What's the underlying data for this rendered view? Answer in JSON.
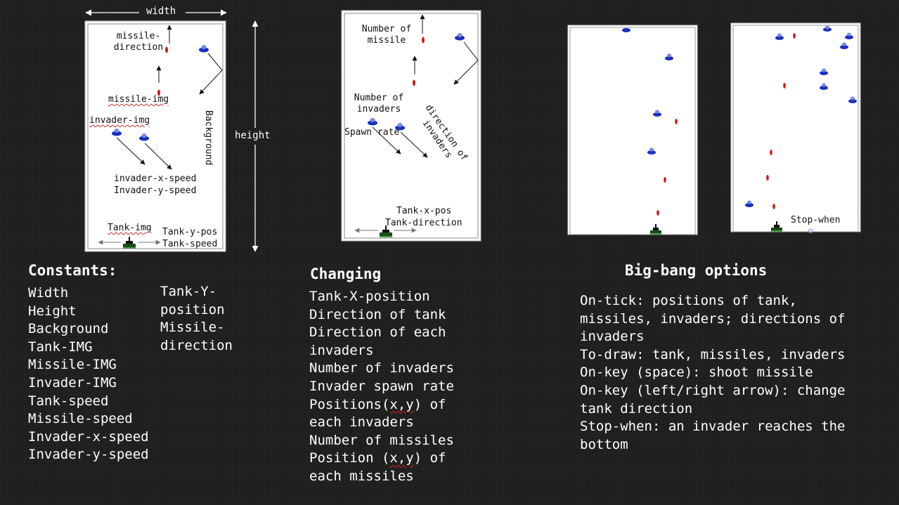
{
  "diagram1": {
    "width_label": "width",
    "height_label": "height",
    "missile_direction_label": "missile-direction",
    "missile_img_label": "missile-img",
    "invader_img_label": "invader-img",
    "background_label": "Background",
    "invader_speed_label_1": "invader-x-speed",
    "invader_speed_label_2": "Invader-y-speed",
    "tank_img_label": "Tank-img",
    "tank_y_pos_label": "Tank-y-pos",
    "tank_speed_label": "Tank-speed"
  },
  "diagram2": {
    "number_of_missile_label": "Number of missile",
    "number_of_invaders_label": "Number of invaders",
    "spawn_rate_label": "Spawn rate",
    "direction_of_invaders_label": "direction of invaders",
    "tank_x_pos_label": "Tank-x-pos",
    "tank_direction_label": "Tank-direction"
  },
  "diagram4": {
    "stop_when_label": "Stop-when"
  },
  "constants": {
    "heading": "Constants:",
    "items_col1": [
      "Width",
      "Height",
      "Background",
      "Tank-IMG",
      "Missile-IMG",
      "Invader-IMG",
      "Tank-speed",
      "Missile-speed",
      "Invader-x-speed",
      "Invader-y-speed"
    ],
    "items_col2": [
      "Tank-Y-",
      "position",
      "Missile-",
      "direction"
    ]
  },
  "changing": {
    "heading": "Changing",
    "items": [
      "Tank-X-position",
      "Direction of tank",
      "Direction of each",
      "invaders",
      "Number of invaders",
      "Invader spawn rate",
      "Positions(x,y) of",
      "each invaders",
      "Number of missiles",
      "Position (x,y) of",
      "each missiles"
    ]
  },
  "bigbang": {
    "heading": "Big-bang options",
    "items": [
      "On-tick: positions of tank,",
      "missiles, invaders; directions of",
      "invaders",
      "To-draw: tank, missiles, invaders",
      "On-key (space): shoot missile",
      "On-key (left/right arrow): change",
      "tank direction",
      "Stop-when: an invader reaches the",
      "bottom"
    ]
  },
  "colors": {
    "background": "#1f1f1f",
    "invader": "#1a2fc0",
    "missile": "#d01818",
    "tank": "#1a4a1a"
  }
}
